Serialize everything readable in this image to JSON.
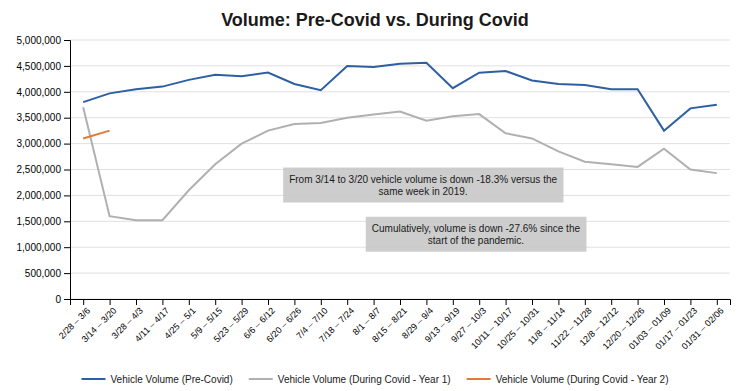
{
  "chart_data": {
    "type": "line",
    "title": "Volume: Pre-Covid vs. During Covid",
    "categories": [
      "2/28 – 3/6",
      "3/14 – 3/20",
      "3/28 – 4/3",
      "4/11 – 4/17",
      "4/25 – 5/1",
      "5/9 – 5/15",
      "5/23 – 5/29",
      "6/6 – 6/12",
      "6/20 – 6/26",
      "7/4 – 7/10",
      "7/18 – 7/24",
      "8/1 – 8/7",
      "8/15 – 8/21",
      "8/29 – 9/4",
      "9/13 – 9/19",
      "9/27 – 10/3",
      "10/11 – 10/17",
      "10/25 – 10/31",
      "11/8 – 11/14",
      "11/22 – 11/28",
      "12/8 – 12/12",
      "12/20 – 12/26",
      "01/03 – 01/09",
      "01/17 – 01/23",
      "01/31 – 02/06"
    ],
    "series": [
      {
        "name": "Vehicle Volume (Pre-Covid)",
        "color": "#2e5fa3",
        "values": [
          3800000,
          3970000,
          4050000,
          4100000,
          4230000,
          4330000,
          4300000,
          4370000,
          4150000,
          4030000,
          4500000,
          4480000,
          4540000,
          4560000,
          4070000,
          4370000,
          4400000,
          4220000,
          4150000,
          4130000,
          4050000,
          4050000,
          3250000,
          3680000,
          3750000
        ]
      },
      {
        "name": "Vehicle Volume (During Covid - Year 1)",
        "color": "#b0b0b0",
        "values": [
          3700000,
          1600000,
          1520000,
          1520000,
          2100000,
          2600000,
          3000000,
          3250000,
          3380000,
          3400000,
          3500000,
          3560000,
          3620000,
          3440000,
          3530000,
          3570000,
          3200000,
          3100000,
          2850000,
          2650000,
          2600000,
          2550000,
          2900000,
          2500000,
          2430000
        ]
      },
      {
        "name": "Vehicle Volume (During Covid - Year 2)",
        "color": "#e07b39",
        "values": [
          3100000,
          3250000,
          null,
          null,
          null,
          null,
          null,
          null,
          null,
          null,
          null,
          null,
          null,
          null,
          null,
          null,
          null,
          null,
          null,
          null,
          null,
          null,
          null,
          null,
          null
        ]
      }
    ],
    "ylim": [
      0,
      5000000
    ],
    "yticks": [
      0,
      {
        "value": 500000,
        "label": "500,000"
      },
      {
        "value": 1000000,
        "label": "1,000,000"
      },
      {
        "value": 1500000,
        "label": "1,500,000"
      },
      {
        "value": 2000000,
        "label": "2,000,000"
      },
      {
        "value": 2500000,
        "label": "2,500,000"
      },
      {
        "value": 3000000,
        "label": "3,000,000"
      },
      {
        "value": 3500000,
        "label": "3,500,000"
      },
      {
        "value": 4000000,
        "label": "4,000,000"
      },
      {
        "value": 4500000,
        "label": "4,500,000"
      },
      {
        "value": 5000000,
        "label": "5,000,000"
      }
    ],
    "grid": true,
    "legend": "bottom",
    "annotations": [
      "From 3/14 to 3/20 vehicle volume is down -18.3% versus the\nsame week in 2019.",
      "Cumulatively, volume is down -27.6% since the\nstart of the pandemic."
    ]
  }
}
